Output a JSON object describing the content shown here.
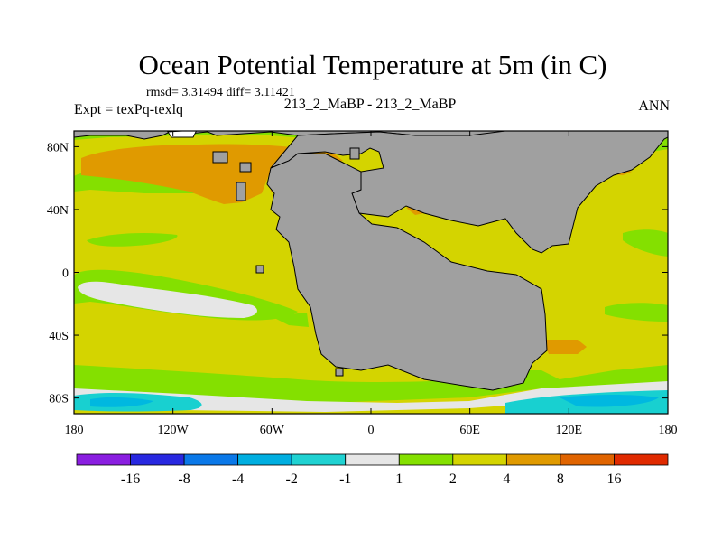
{
  "header": {
    "title": "Ocean Potential Temperature at 5m (in C)",
    "stats": "rmsd= 3.31494  diff= 3.11421",
    "expt": "Expt = texPq-texlq",
    "subtitle": "213_2_MaBP - 213_2_MaBP",
    "season": "ANN"
  },
  "map": {
    "lon_labels": [
      "180",
      "120W",
      "60W",
      "0",
      "60E",
      "120E",
      "180"
    ],
    "lat_labels": [
      "80N",
      "40N",
      "0",
      "40S",
      "80S"
    ],
    "lon_ticks": [
      -180,
      -120,
      -60,
      0,
      60,
      120,
      180
    ],
    "lat_ticks": [
      80,
      40,
      0,
      -40,
      -80
    ],
    "lon_range": [
      -180,
      180
    ],
    "lat_range": [
      -90,
      90
    ],
    "land_color": "#a0a0a0",
    "field_colors": {
      "bin_2_4": "#d4d400",
      "bin_4_8": "#e09a00",
      "bin_1_2": "#84e000",
      "bin_m1_1": "#e6e6e6",
      "bin_m2_m1": "#18d0d0",
      "bin_m4_m2": "#00b8e0"
    }
  },
  "colorbar": {
    "labels": [
      "-16",
      "-8",
      "-4",
      "-2",
      "-1",
      "1",
      "2",
      "4",
      "8",
      "16"
    ],
    "colors": [
      "#8a1ee0",
      "#2828e0",
      "#0a78e8",
      "#00aee0",
      "#20d2d2",
      "#e6e6e6",
      "#84e000",
      "#d4d400",
      "#e09a00",
      "#e06400",
      "#e02a00"
    ]
  }
}
